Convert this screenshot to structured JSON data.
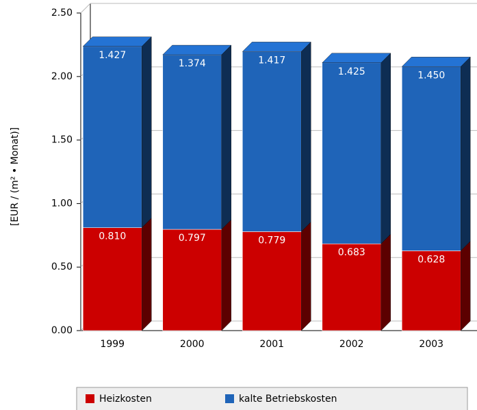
{
  "chart_data": {
    "type": "bar3d_stacked",
    "y_label": "[EUR / (m² • Monat)]",
    "categories": [
      "1999",
      "2000",
      "2001",
      "2002",
      "2003"
    ],
    "series": [
      {
        "name": "Heizkosten",
        "color": "#cc0000",
        "values": [
          0.81,
          0.797,
          0.779,
          0.683,
          0.628
        ],
        "value_labels": [
          "0.810",
          "0.797",
          "0.779",
          "0.683",
          "0.628"
        ]
      },
      {
        "name": "kalte Betriebskosten",
        "color": "#1f64b8",
        "values": [
          1.427,
          1.374,
          1.417,
          1.425,
          1.45
        ],
        "value_labels": [
          "1.427",
          "1.374",
          "1.417",
          "1.425",
          "1.450"
        ]
      }
    ],
    "ylim": [
      0,
      2.5
    ],
    "yticks": [
      {
        "value": 0,
        "label": "0.00"
      },
      {
        "value": 0.5,
        "label": "0.50"
      },
      {
        "value": 1,
        "label": "1.00"
      },
      {
        "value": 1.5,
        "label": "1.50"
      },
      {
        "value": 2,
        "label": "2.00"
      },
      {
        "value": 2.5,
        "label": "2.50"
      }
    ],
    "grid": true
  }
}
